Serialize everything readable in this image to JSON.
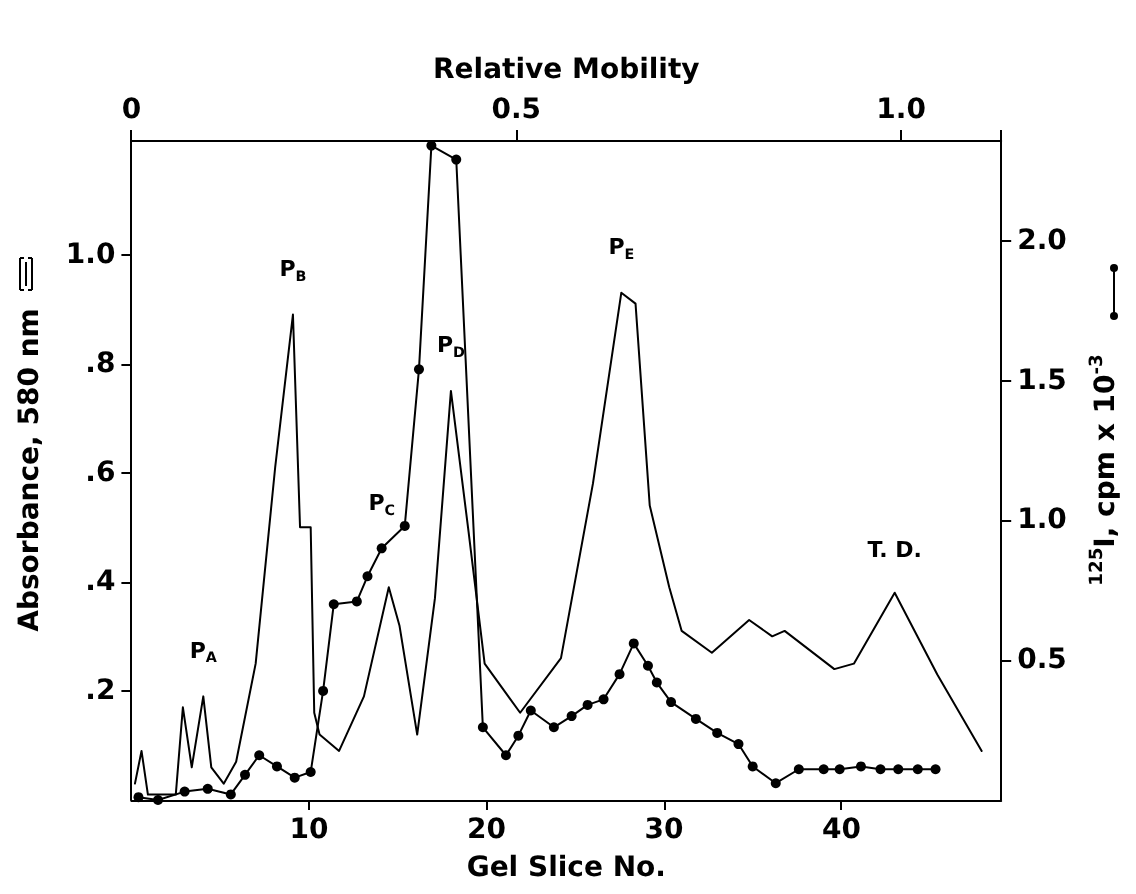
{
  "chart_data": {
    "type": "line",
    "xlabel": "Gel Slice No.",
    "ylabel": "Absorbance, 580 nm",
    "y2label": "$^{125}$I, cpm x 10$^{-3}$",
    "x2label": "Relative Mobility",
    "xlim": [
      0,
      49
    ],
    "xticks": [
      10,
      20,
      30,
      40
    ],
    "x2lim": [
      0,
      1.13
    ],
    "x2ticks": [
      0,
      0.5,
      {
        "value": 1.0,
        "label": "1.0"
      }
    ],
    "ylim": [
      0,
      1.21
    ],
    "yticks": [
      {
        "value": 0.2,
        "label": ".2"
      },
      {
        "value": 0.4,
        "label": ".4"
      },
      {
        "value": 0.6,
        "label": ".6"
      },
      {
        "value": 0.8,
        "label": ".8"
      },
      {
        "value": 1.0,
        "label": "1.0"
      }
    ],
    "y2lim": [
      0,
      2.36
    ],
    "y2ticks": [
      0.5,
      {
        "value": 1.0,
        "label": "1.0"
      },
      1.5,
      {
        "value": 2.0,
        "label": "2.0"
      }
    ],
    "grid": false,
    "series": [
      {
        "color": "#000000",
        "marker": "none",
        "x": [
          0.2,
          0.57,
          0.93,
          2.5,
          2.9,
          3.4,
          4.05,
          4.5,
          5.2,
          5.9,
          7.0,
          8.1,
          9.1,
          9.5,
          10.1,
          10.3,
          10.6,
          11.7,
          13.1,
          14.5,
          15.1,
          16.1,
          17.1,
          18.0,
          19.0,
          19.9,
          21.9,
          24.2,
          26.0,
          27.6,
          28.4,
          29.2,
          30.3,
          31.0,
          32.7,
          34.8,
          36.1,
          36.8,
          39.6,
          40.7,
          43.0,
          45.4,
          47.9
        ],
        "values": [
          0.03,
          0.09,
          0.01,
          0.01,
          0.17,
          0.06,
          0.19,
          0.06,
          0.03,
          0.07,
          0.25,
          0.61,
          0.89,
          0.5,
          0.5,
          0.16,
          0.12,
          0.09,
          0.19,
          0.39,
          0.32,
          0.12,
          0.37,
          0.75,
          0.49,
          0.25,
          0.16,
          0.26,
          0.58,
          0.93,
          0.91,
          0.54,
          0.39,
          0.31,
          0.27,
          0.33,
          0.3,
          0.31,
          0.24,
          0.25,
          0.38,
          0.23,
          0.09
        ]
      },
      {
        "color": "#000000",
        "marker": "circle",
        "axis": "y2",
        "x": [
          0.4,
          1.5,
          3.0,
          4.3,
          5.6,
          6.4,
          7.2,
          8.2,
          9.2,
          10.1,
          10.8,
          11.4,
          12.7,
          13.3,
          14.1,
          15.4,
          16.2,
          16.9,
          18.3,
          19.8,
          21.1,
          21.8,
          22.5,
          23.8,
          24.8,
          25.7,
          26.6,
          27.5,
          28.3,
          29.1,
          29.6,
          30.4,
          31.8,
          33.0,
          34.2,
          35.0,
          36.3,
          37.6,
          39.0,
          39.9,
          41.1,
          42.2,
          43.2,
          44.3,
          45.3
        ],
        "values": [
          0.01,
          0,
          0.03,
          0.04,
          0.02,
          0.09,
          0.16,
          0.12,
          0.08,
          0.1,
          0.39,
          0.7,
          0.71,
          0.8,
          0.9,
          0.98,
          1.54,
          2.34,
          2.29,
          0.26,
          0.16,
          0.23,
          0.32,
          0.26,
          0.3,
          0.34,
          0.36,
          0.45,
          0.56,
          0.48,
          0.42,
          0.35,
          0.29,
          0.24,
          0.2,
          0.12,
          0.06,
          0.11,
          0.11,
          0.11,
          0.12,
          0.11,
          0.11,
          0.11,
          0.11
        ]
      }
    ],
    "annotations": [
      {
        "text": "P$_{A}$",
        "x": 4.05,
        "y": 0.19
      },
      {
        "text": "P$_{B}$",
        "x": 9.1,
        "y": 0.89
      },
      {
        "text": "P$_{C}$",
        "x": 14.1,
        "y": 0.46
      },
      {
        "text": "P$_{D}$",
        "x": 18.0,
        "y": 0.75
      },
      {
        "text": "P$_{E}$",
        "x": 27.6,
        "y": 0.93
      },
      {
        "text": "T. D.",
        "x": 43.0,
        "y": 0.38
      }
    ]
  }
}
